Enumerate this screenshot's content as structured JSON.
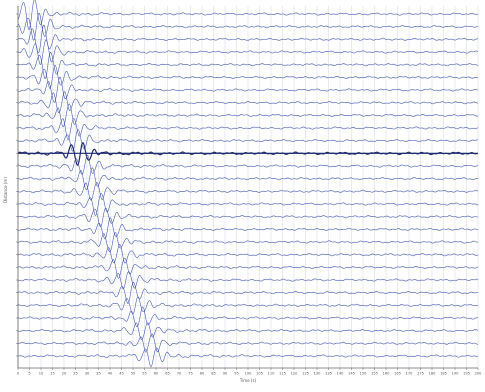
{
  "chart_data": {
    "type": "line",
    "chart_kind": "seismic-wiggle-record-section",
    "title": "",
    "xlabel": "Time (s)",
    "ylabel": "Distance (m)",
    "xlim": [
      0,
      200
    ],
    "x_ticks": [
      0,
      5,
      10,
      15,
      20,
      25,
      30,
      35,
      40,
      45,
      50,
      55,
      60,
      65,
      70,
      75,
      80,
      85,
      90,
      95,
      100,
      105,
      110,
      115,
      120,
      125,
      130,
      135,
      140,
      145,
      150,
      155,
      160,
      165,
      170,
      175,
      180,
      185,
      190,
      195,
      200
    ],
    "trace_count": 28,
    "trace_arrival_times_s": [
      6,
      8,
      10,
      11,
      13,
      15,
      17,
      19,
      21,
      23,
      25,
      27,
      29,
      31,
      33,
      35,
      37,
      39,
      41,
      43,
      45,
      47,
      49,
      51,
      53,
      55,
      57,
      59
    ],
    "trace_peak_amplitudes": [
      0.8,
      0.76,
      0.72,
      0.7,
      0.68,
      0.66,
      0.64,
      0.62,
      0.6,
      0.6,
      0.58,
      0.58,
      0.56,
      0.56,
      0.55,
      0.55,
      0.54,
      0.54,
      0.53,
      0.53,
      0.52,
      0.52,
      0.51,
      0.51,
      0.5,
      0.5,
      0.5,
      0.5
    ],
    "highlighted_trace_index": 11,
    "grid": true,
    "legend": "none",
    "colors": {
      "trace": "#4a5cb0",
      "highlighted_trace": "#1f2a6e",
      "grid": "#d3d7e2",
      "axis": "#666666",
      "label": "#555555"
    }
  }
}
